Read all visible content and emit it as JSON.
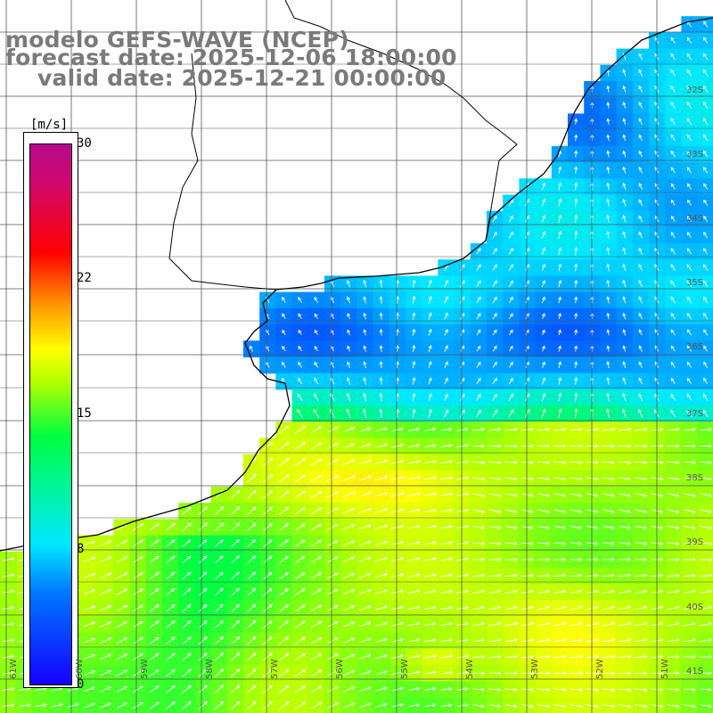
{
  "title": {
    "line1": "modelo GEFS-WAVE (NCEP)",
    "line2": "forecast date: 2025-12-06 18:00:00",
    "line3": "valid date: 2025-12-21 00:00:00"
  },
  "colorbar": {
    "unit": "[m/s]",
    "min": 0,
    "max": 30,
    "ticks": [
      "0",
      "8",
      "15",
      "22",
      "30"
    ]
  },
  "map": {
    "lon_range": [
      -61.2,
      -50.3
    ],
    "lat_range": [
      -41.3,
      -30.6
    ],
    "lat_labels": [
      "32S",
      "33S",
      "34S",
      "35S",
      "36S",
      "37S",
      "38S",
      "39S",
      "40S",
      "41S"
    ],
    "lon_labels": [
      "61W",
      "60W",
      "59W",
      "58W",
      "57W",
      "56W",
      "55W",
      "54W",
      "53W",
      "52W",
      "51W"
    ],
    "colors": {
      "land": "#ffffff",
      "grid": "#555555",
      "coast": "#000000",
      "arrow": "#ffffff"
    }
  }
}
